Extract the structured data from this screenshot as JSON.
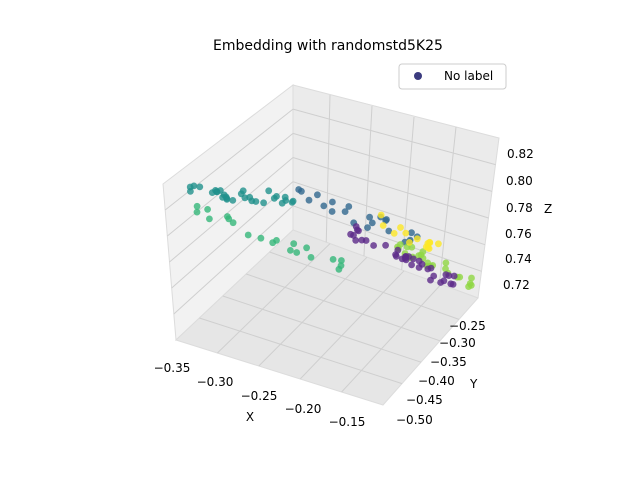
{
  "chart_data": {
    "type": "scatter",
    "title": "Embedding with randomstd5K25",
    "xlabel": "X",
    "ylabel": "Y",
    "zlabel": "Z",
    "x_ticks": [
      "−0.35",
      "−0.30",
      "−0.25",
      "−0.20",
      "−0.15"
    ],
    "y_ticks": [
      "−0.50",
      "−0.45",
      "−0.40",
      "−0.35",
      "−0.30",
      "−0.25"
    ],
    "z_ticks": [
      "0.72",
      "0.74",
      "0.76",
      "0.78",
      "0.80",
      "0.82"
    ],
    "legend": {
      "label": "No label",
      "color": "#3b3b7f",
      "placement": "top-right"
    },
    "colormap": "viridis",
    "grid": true,
    "approximate_point_groups": [
      {
        "region": "upper-left teal ridge",
        "color": "#21918c",
        "count": 30
      },
      {
        "region": "middle blue ridge",
        "color": "#31688e",
        "count": 22
      },
      {
        "region": "lower-left green arc",
        "color": "#35b779",
        "count": 20
      },
      {
        "region": "light green right cluster",
        "color": "#90d743",
        "count": 25
      },
      {
        "region": "yellow cluster",
        "color": "#fde725",
        "count": 14
      },
      {
        "region": "purple right cluster",
        "color": "#5c2a8a",
        "count": 35
      }
    ]
  }
}
